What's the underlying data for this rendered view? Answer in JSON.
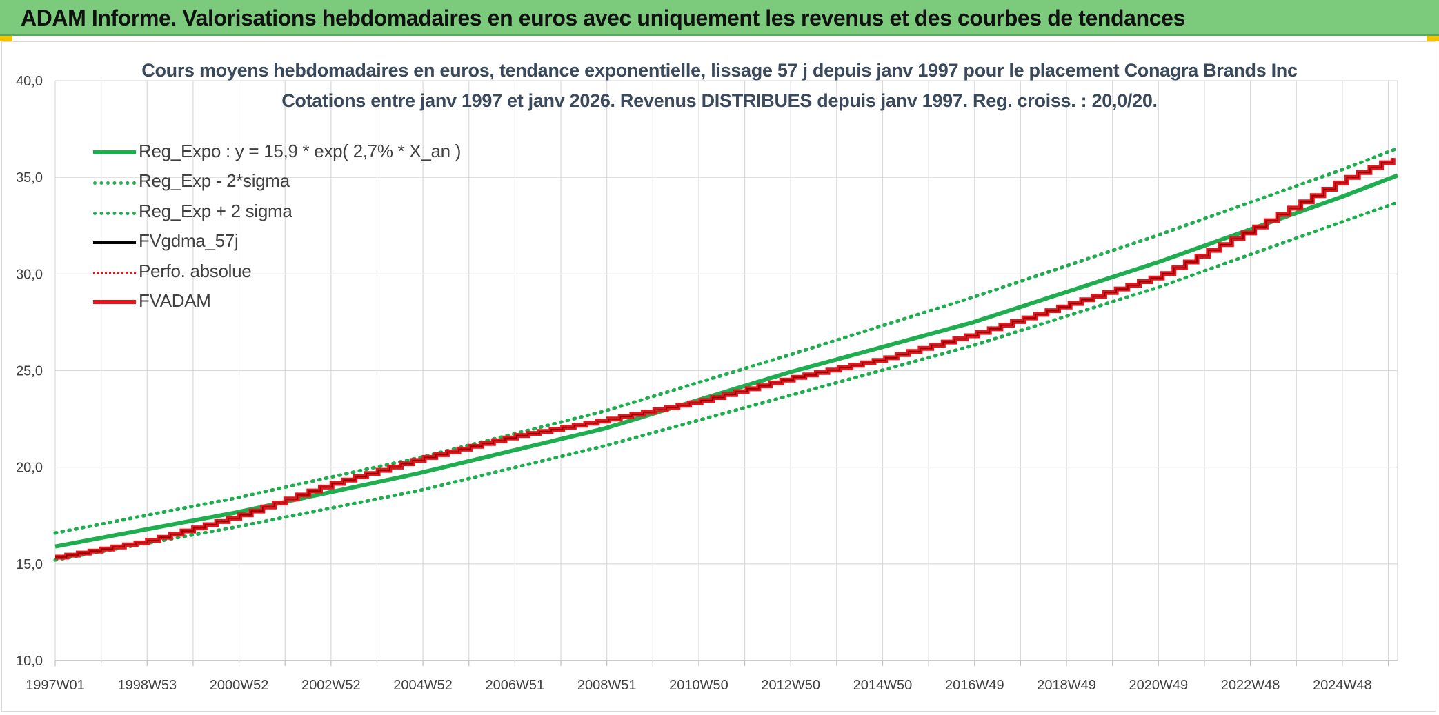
{
  "header": {
    "title": "ADAM Informe. Valorisations hebdomadaires en euros avec uniquement les revenus et des courbes de tendances"
  },
  "colors": {
    "banner": "#7ccb7c",
    "trend_green": "#1fae4f",
    "adam_red": "#e8141c",
    "fvgdma_black": "#000000",
    "grid": "#d9d9d9"
  },
  "chart_data": {
    "type": "line",
    "title_line1": "Cours moyens hebdomadaires en euros, tendance exponentielle, lissage 57 j depuis janv 1997 pour le placement Conagra Brands Inc",
    "title_line2": "Cotations entre janv 1997 et janv 2026. Revenus DISTRIBUES depuis janv 1997. Reg. croiss. : 20,0/20.",
    "ylim": [
      10,
      40
    ],
    "yticks": [
      "10,0",
      "15,0",
      "20,0",
      "25,0",
      "30,0",
      "35,0",
      "40,0"
    ],
    "xticks": [
      "1997W01",
      "1998W53",
      "2000W52",
      "2002W52",
      "2004W52",
      "2006W51",
      "2008W51",
      "2010W50",
      "2012W50",
      "2014W50",
      "2016W49",
      "2018W49",
      "2020W49",
      "2022W48",
      "2024W48"
    ],
    "x_range_years": [
      1997.0,
      2026.1
    ],
    "grid": true,
    "legend_position": "top-left",
    "legend": [
      {
        "label": "Reg_Expo : y = 15,9 * exp( 2,7% *  X_an )",
        "style": "solid-green"
      },
      {
        "label": "Reg_Exp - 2*sigma",
        "style": "dot-green"
      },
      {
        "label": "Reg_Exp + 2 sigma",
        "style": "dot-green"
      },
      {
        "label": "FVgdma_57j",
        "style": "solid-black"
      },
      {
        "label": "Perfo. absolue",
        "style": "dot-red"
      },
      {
        "label": "FVADAM",
        "style": "solid-red"
      }
    ],
    "series": [
      {
        "name": "Reg_Expo : y = 15,9 * exp( 2,7% *  X_an )",
        "points": [
          [
            1997.0,
            15.9
          ],
          [
            2000.9,
            17.65
          ],
          [
            2004.9,
            19.7
          ],
          [
            2008.9,
            22.0
          ],
          [
            2012.9,
            24.9
          ],
          [
            2016.9,
            27.5
          ],
          [
            2020.9,
            30.6
          ],
          [
            2024.9,
            34.0
          ],
          [
            2026.1,
            35.1
          ]
        ]
      },
      {
        "name": "Reg_Exp - 2*sigma",
        "points": [
          [
            1997.0,
            15.2
          ],
          [
            2000.9,
            16.9
          ],
          [
            2004.9,
            18.8
          ],
          [
            2008.9,
            21.1
          ],
          [
            2012.9,
            23.7
          ],
          [
            2016.9,
            26.3
          ],
          [
            2020.9,
            29.3
          ],
          [
            2024.9,
            32.7
          ],
          [
            2026.1,
            33.7
          ]
        ]
      },
      {
        "name": "Reg_Exp + 2 sigma",
        "points": [
          [
            1997.0,
            16.6
          ],
          [
            2000.9,
            18.4
          ],
          [
            2004.9,
            20.5
          ],
          [
            2008.9,
            22.9
          ],
          [
            2012.9,
            25.8
          ],
          [
            2016.9,
            28.8
          ],
          [
            2020.9,
            32.0
          ],
          [
            2024.9,
            35.4
          ],
          [
            2026.1,
            36.5
          ]
        ]
      },
      {
        "name": "FVADAM",
        "points": [
          [
            1997.0,
            15.35
          ],
          [
            1998.9,
            16.15
          ],
          [
            2000.9,
            17.45
          ],
          [
            2002.9,
            19.1
          ],
          [
            2004.9,
            20.45
          ],
          [
            2006.9,
            21.6
          ],
          [
            2008.9,
            22.45
          ],
          [
            2010.9,
            23.4
          ],
          [
            2012.9,
            24.6
          ],
          [
            2014.9,
            25.6
          ],
          [
            2016.9,
            26.9
          ],
          [
            2018.9,
            28.4
          ],
          [
            2020.9,
            29.9
          ],
          [
            2022.9,
            32.3
          ],
          [
            2024.9,
            34.9
          ],
          [
            2026.1,
            36.1
          ]
        ]
      }
    ]
  }
}
